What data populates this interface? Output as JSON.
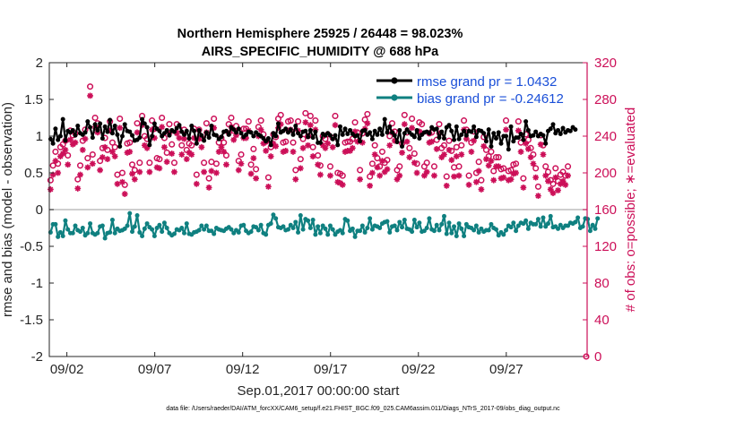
{
  "title_line1": "Northern Hemisphere 25925 / 26448 = 98.023%",
  "title_line2": "AIRS_SPECIFIC_HUMIDITY @ 688 hPa",
  "xlabel": "Sep.01,2017 00:00:00 start",
  "ylabel_left": "rmse and bias (model - observation)",
  "ylabel_right": "# of obs: o=possible; ∗=evaluated",
  "footer": "data file: /Users/raeder/DAI/ATM_forcXX/CAM6_setup/f.e21.FHIST_BGC.f09_025.CAM6assim.011/Diags_NTrS_2017-09/obs_diag_output.nc",
  "colors": {
    "rmse": "#000000",
    "bias": "#0f8080",
    "obs": "#cc0f58",
    "legend_text": "#1a4fd8",
    "zero_line": "#bdbdbd"
  },
  "chart_data": {
    "type": "line",
    "x_unit": "days since Sep.01,2017 00:00:00",
    "xlim": [
      0.5,
      31.1
    ],
    "xticks": [
      1.5,
      6.5,
      11.5,
      16.5,
      21.5,
      26.5
    ],
    "xtick_labels": [
      "09/02",
      "09/07",
      "09/12",
      "09/17",
      "09/22",
      "09/27"
    ],
    "ylim_left": [
      -2,
      2
    ],
    "yticks_left": [
      -2,
      -1.5,
      -1,
      -0.5,
      0,
      0.5,
      1,
      1.5,
      2
    ],
    "ytick_labels_left": [
      "-2",
      "-1.5",
      "-1",
      "-0.5",
      "0",
      "0.5",
      "1",
      "1.5",
      "2"
    ],
    "ylim_right": [
      0,
      320
    ],
    "yticks_right": [
      0,
      40,
      80,
      120,
      160,
      200,
      240,
      280,
      320
    ],
    "ytick_labels_right": [
      "0",
      "40",
      "80",
      "120",
      "160",
      "200",
      "240",
      "280",
      "320"
    ],
    "legend_entries": [
      "rmse grand pr = 1.0432",
      "bias grand pr = -0.24612"
    ],
    "legend_placement": "top-right",
    "grid": false,
    "rmse": [
      0.96,
      0.9,
      1.1,
      0.95,
      1.0,
      1.23,
      0.94,
      1.07,
      1.05,
      1.08,
      1.01,
      1.14,
      1.04,
      1.02,
      1.05,
      1.2,
      1.12,
      0.98,
      1.16,
      1.08,
      1.17,
      0.97,
      1.13,
      1.06,
      1.22,
      1.04,
      1.14,
      1.02,
      0.86,
      1.0,
      1.16,
      1.07,
      1.06,
      1.01,
      0.94,
      0.95,
      0.98,
      1.23,
      1.17,
      1.12,
      0.88,
      1.0,
      1.17,
      1.1,
      1.07,
      1.0,
      1.04,
      1.08,
      1.01,
      1.08,
      1.06,
      1.11,
      1.15,
      1.06,
      1.02,
      1.07,
      0.97,
      1.14,
      1.07,
      0.9,
      1.08,
      1.01,
      0.94,
      1.05,
      0.98,
      1.14,
      1.02,
      1.01,
      0.96,
      0.99,
      1.06,
      1.07,
      1.02,
      1.12,
      1.09,
      1.05,
      1.1,
      1.04,
      0.99,
      1.02,
      1.06,
      1.05,
      1.0,
      1.05,
      1.02,
      1.0,
      0.97,
      0.93,
      0.97,
      0.88,
      1.04,
      1.0,
      1.17,
      1.05,
      1.07,
      1.1,
      1.05,
      1.09,
      1.02,
      1.14,
      1.04,
      1.0,
      1.06,
      1.07,
      0.99,
      1.08,
      0.98,
      1.06,
      0.91,
      0.91,
      1.03,
      1.01,
      1.04,
      1.01,
      0.96,
      1.01,
      0.88,
      1.13,
      1.02,
      1.1,
      1.03,
      1.08,
      1.03,
      1.0,
      1.01,
      0.93,
      1.07,
      1.08,
      1.02,
      1.05,
      0.96,
      1.07,
      1.02,
      1.1,
      1.02,
      1.23,
      1.05,
      1.13,
      1.05,
      1.01,
      0.92,
      1.08,
      0.86,
      1.04,
      1.09,
      1.05,
      1.02,
      0.99,
      1.08,
      0.97,
      1.02,
      1.05,
      1.06,
      1.04,
      1.12,
      1.09,
      1.1,
      0.98,
      1.06,
      0.97,
      1.12,
      1.15,
      1.07,
      0.95,
      1.13,
      0.96,
      1.02,
      1.07,
      1.01,
      1.07,
      1.06,
      1.13,
      0.99,
      1.08,
      1.07,
      1.04,
      0.93,
      1.09,
      0.86,
      1.04,
      0.97,
      1.05,
      0.9,
      1.0,
      1.0,
      0.82,
      1.13,
      0.93,
      0.98,
      0.98,
      1.03,
      0.95,
      1.2,
      1.08,
      1.0,
      1.01,
      1.06,
      1.0,
      1.03,
      1.01,
      0.9,
      1.07,
      1.1,
      1.16,
      1.04,
      1.08,
      1.03,
      1.11,
      1.05,
      1.08,
      1.07,
      1.12,
      1.09
    ],
    "bias": [
      -0.31,
      -0.2,
      -0.2,
      -0.37,
      -0.31,
      -0.36,
      -0.15,
      -0.27,
      -0.32,
      -0.32,
      -0.22,
      -0.28,
      -0.3,
      -0.25,
      -0.35,
      -0.32,
      -0.19,
      -0.32,
      -0.34,
      -0.32,
      -0.23,
      -0.22,
      -0.39,
      -0.32,
      -0.31,
      -0.14,
      -0.32,
      -0.26,
      -0.29,
      -0.28,
      -0.26,
      -0.22,
      -0.05,
      -0.3,
      -0.23,
      -0.08,
      -0.31,
      -0.36,
      -0.26,
      -0.19,
      -0.24,
      -0.27,
      -0.36,
      -0.25,
      -0.21,
      -0.3,
      -0.18,
      -0.25,
      -0.32,
      -0.35,
      -0.33,
      -0.27,
      -0.28,
      -0.25,
      -0.32,
      -0.19,
      -0.33,
      -0.34,
      -0.31,
      -0.3,
      -0.28,
      -0.22,
      -0.27,
      -0.22,
      -0.29,
      -0.29,
      -0.33,
      -0.25,
      -0.27,
      -0.28,
      -0.29,
      -0.26,
      -0.24,
      -0.27,
      -0.32,
      -0.28,
      -0.31,
      -0.22,
      -0.21,
      -0.29,
      -0.32,
      -0.3,
      -0.23,
      -0.24,
      -0.28,
      -0.21,
      -0.32,
      -0.34,
      -0.21,
      -0.19,
      -0.07,
      -0.12,
      -0.24,
      -0.25,
      -0.23,
      -0.28,
      -0.27,
      -0.21,
      -0.25,
      -0.17,
      -0.31,
      -0.08,
      -0.27,
      -0.13,
      -0.15,
      -0.25,
      -0.14,
      -0.34,
      -0.23,
      -0.32,
      -0.22,
      -0.26,
      -0.34,
      -0.22,
      -0.27,
      -0.34,
      -0.3,
      -0.28,
      -0.32,
      -0.13,
      -0.15,
      -0.29,
      -0.26,
      -0.37,
      -0.29,
      -0.29,
      -0.22,
      -0.31,
      -0.25,
      -0.12,
      -0.27,
      -0.22,
      -0.23,
      -0.25,
      -0.19,
      -0.17,
      -0.16,
      -0.31,
      -0.23,
      -0.22,
      -0.28,
      -0.17,
      -0.24,
      -0.14,
      -0.26,
      -0.27,
      -0.3,
      -0.14,
      -0.24,
      -0.18,
      -0.3,
      -0.29,
      -0.25,
      -0.12,
      -0.27,
      -0.29,
      -0.21,
      -0.28,
      -0.2,
      -0.09,
      -0.33,
      -0.18,
      -0.32,
      -0.23,
      -0.36,
      -0.19,
      -0.26,
      -0.36,
      -0.2,
      -0.24,
      -0.25,
      -0.28,
      -0.22,
      -0.31,
      -0.26,
      -0.3,
      -0.28,
      -0.28,
      -0.2,
      -0.25,
      -0.27,
      -0.35,
      -0.31,
      -0.34,
      -0.28,
      -0.22,
      -0.24,
      -0.18,
      -0.29,
      -0.22,
      -0.18,
      -0.19,
      -0.15,
      -0.26,
      -0.18,
      -0.2,
      -0.2,
      -0.13,
      -0.23,
      -0.11,
      -0.23,
      -0.19,
      -0.09,
      -0.24,
      -0.23,
      -0.26,
      -0.21,
      -0.25,
      -0.22,
      -0.22,
      -0.18,
      -0.19,
      -0.17,
      -0.11,
      -0.25,
      -0.23,
      -0.12,
      -0.13,
      -0.29,
      -0.21,
      -0.26,
      -0.12
    ],
    "obs_possible": [
      192,
      208,
      223,
      210,
      228,
      231,
      235,
      219,
      246,
      241,
      243,
      193,
      208,
      235,
      247,
      216,
      294,
      220,
      260,
      254,
      213,
      227,
      238,
      225,
      256,
      233,
      228,
      198,
      259,
      200,
      187,
      232,
      233,
      209,
      203,
      254,
      211,
      262,
      240,
      237,
      211,
      257,
      248,
      216,
      215,
      260,
      238,
      222,
      253,
      231,
      211,
      253,
      248,
      230,
      247,
      225,
      232,
      230,
      248,
      198,
      247,
      238,
      211,
      254,
      194,
      212,
      259,
      210,
      233,
      238,
      233,
      219,
      253,
      260,
      246,
      251,
      213,
      220,
      248,
      248,
      256,
      209,
      226,
      204,
      250,
      257,
      242,
      234,
      195,
      228,
      242,
      239,
      259,
      263,
      233,
      234,
      256,
      257,
      233,
      203,
      256,
      215,
      237,
      265,
      240,
      262,
      228,
      257,
      219,
      208,
      240,
      237,
      242,
      207,
      238,
      262,
      200,
      199,
      197,
      233,
      234,
      234,
      237,
      255,
      244,
      203,
      243,
      258,
      264,
      196,
      210,
      230,
      216,
      207,
      223,
      211,
      214,
      240,
      254,
      245,
      203,
      207,
      232,
      263,
      244,
      227,
      259,
      221,
      210,
      255,
      253,
      207,
      211,
      243,
      244,
      207,
      236,
      253,
      227,
      230,
      196,
      235,
      224,
      206,
      228,
      207,
      230,
      257,
      247,
      197,
      233,
      245,
      200,
      212,
      192,
      239,
      225,
      218,
      223,
      202,
      217,
      217,
      204,
      205,
      257,
      202,
      203,
      209,
      210,
      256,
      233,
      194,
      242,
      236,
      227,
      220,
      205,
      185,
      241,
      230,
      207,
      201,
      192,
      188,
      205,
      191,
      198,
      201,
      197,
      207
    ],
    "obs_evaluated": [
      182,
      198,
      213,
      200,
      218,
      221,
      225,
      209,
      236,
      231,
      233,
      183,
      198,
      225,
      237,
      206,
      284,
      210,
      250,
      244,
      203,
      217,
      228,
      215,
      246,
      223,
      218,
      188,
      249,
      190,
      177,
      222,
      223,
      199,
      193,
      244,
      201,
      252,
      230,
      227,
      201,
      247,
      238,
      206,
      205,
      250,
      228,
      212,
      243,
      221,
      201,
      243,
      238,
      220,
      237,
      215,
      222,
      220,
      238,
      188,
      237,
      228,
      201,
      244,
      184,
      202,
      249,
      200,
      223,
      228,
      223,
      209,
      243,
      250,
      236,
      241,
      203,
      210,
      238,
      238,
      246,
      199,
      216,
      194,
      240,
      247,
      232,
      224,
      185,
      218,
      232,
      229,
      249,
      253,
      223,
      224,
      246,
      247,
      223,
      193,
      246,
      205,
      227,
      255,
      230,
      252,
      218,
      247,
      209,
      198,
      230,
      227,
      232,
      197,
      228,
      252,
      190,
      189,
      187,
      223,
      224,
      224,
      227,
      245,
      234,
      193,
      233,
      248,
      254,
      186,
      200,
      220,
      206,
      197,
      213,
      201,
      204,
      230,
      244,
      235,
      193,
      197,
      222,
      253,
      234,
      217,
      249,
      211,
      200,
      245,
      243,
      197,
      201,
      233,
      234,
      197,
      226,
      243,
      217,
      220,
      186,
      225,
      214,
      196,
      218,
      197,
      220,
      247,
      237,
      187,
      223,
      235,
      190,
      202,
      182,
      229,
      215,
      208,
      213,
      192,
      207,
      207,
      194,
      195,
      247,
      192,
      193,
      199,
      200,
      246,
      223,
      184,
      232,
      226,
      217,
      210,
      195,
      175,
      231,
      220,
      197,
      191,
      182,
      178,
      195,
      181,
      188,
      191,
      187,
      197
    ]
  }
}
